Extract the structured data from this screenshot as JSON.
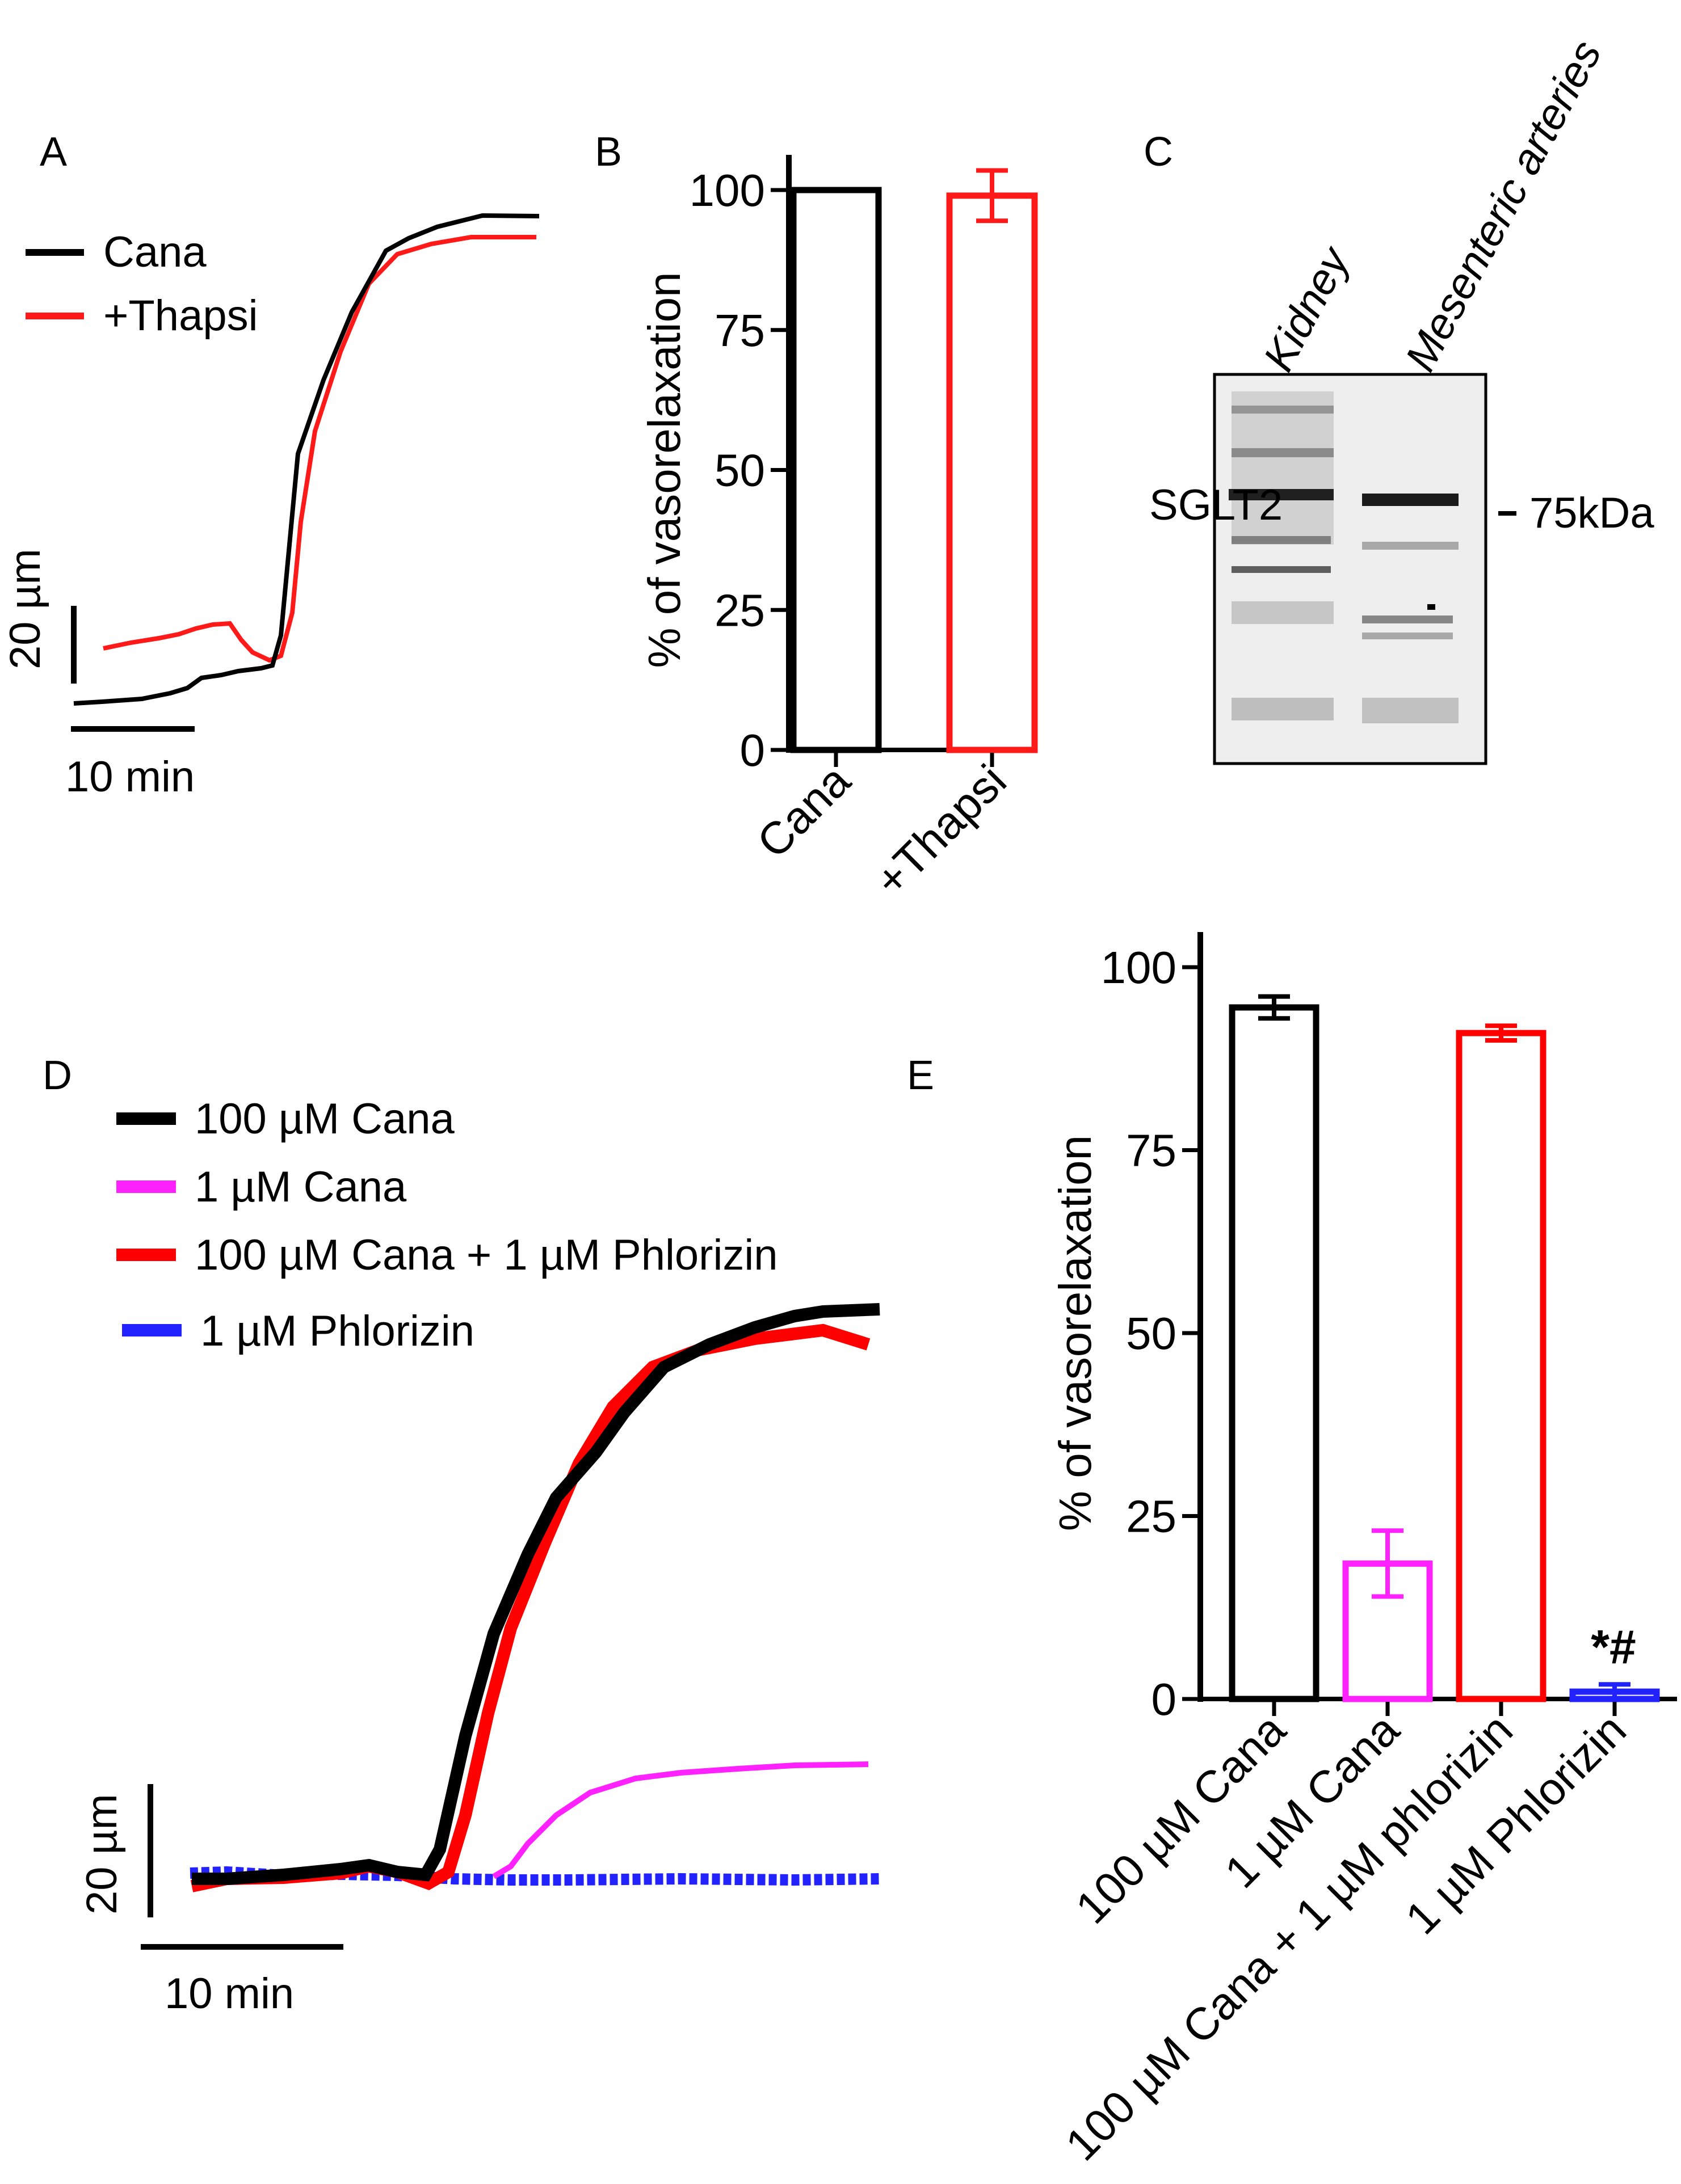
{
  "panels": {
    "A": {
      "letter": "A",
      "legend": [
        {
          "label": "Cana",
          "color": "#000000"
        },
        {
          "label": "+Thapsi",
          "color": "#ff1a1a"
        }
      ],
      "scale_y": "20 µm",
      "scale_x": "10 min"
    },
    "B": {
      "letter": "B"
    },
    "C": {
      "letter": "C",
      "lanes": [
        "Kidney",
        "Mesenteric arteries"
      ],
      "band_label": "SGLT2",
      "marker_label": "75kDa"
    },
    "D": {
      "letter": "D",
      "legend": [
        {
          "label": "100 µM Cana",
          "color": "#000000"
        },
        {
          "label": "1 µM Cana",
          "color": "#ff22ff"
        },
        {
          "label": "100 µM Cana + 1 µM Phlorizin",
          "color": "#ff0000"
        },
        {
          "label": "1 µM Phlorizin",
          "color": "#2222ff"
        }
      ],
      "scale_y": "20 µm",
      "scale_x": "10 min"
    },
    "E": {
      "letter": "E",
      "significance": "*#"
    }
  },
  "chart_data": [
    {
      "panel": "B",
      "type": "bar",
      "categories": [
        "Cana",
        "+Thapsi"
      ],
      "values": [
        100,
        99
      ],
      "errors": [
        0,
        4.5
      ],
      "colors": [
        "#000000",
        "#ff1a1a"
      ],
      "ylabel": "% of vasorelaxation",
      "ylim": [
        0,
        100
      ],
      "yticks": [
        "0",
        "25",
        "50",
        "75",
        "100"
      ]
    },
    {
      "panel": "E",
      "type": "bar",
      "categories": [
        "100 µM Cana",
        "1 µM Cana",
        "100 µM Cana + 1 µM phlorizin",
        "1 µM Phlorizin"
      ],
      "values": [
        94.5,
        18.5,
        91,
        1
      ],
      "errors": [
        1.5,
        4.5,
        1,
        1
      ],
      "colors": [
        "#000000",
        "#ff22ff",
        "#ff0000",
        "#2222ff"
      ],
      "ylabel": "% of vasorelaxation",
      "ylim": [
        0,
        100
      ],
      "yticks": [
        "0",
        "25",
        "50",
        "75",
        "100"
      ]
    }
  ]
}
